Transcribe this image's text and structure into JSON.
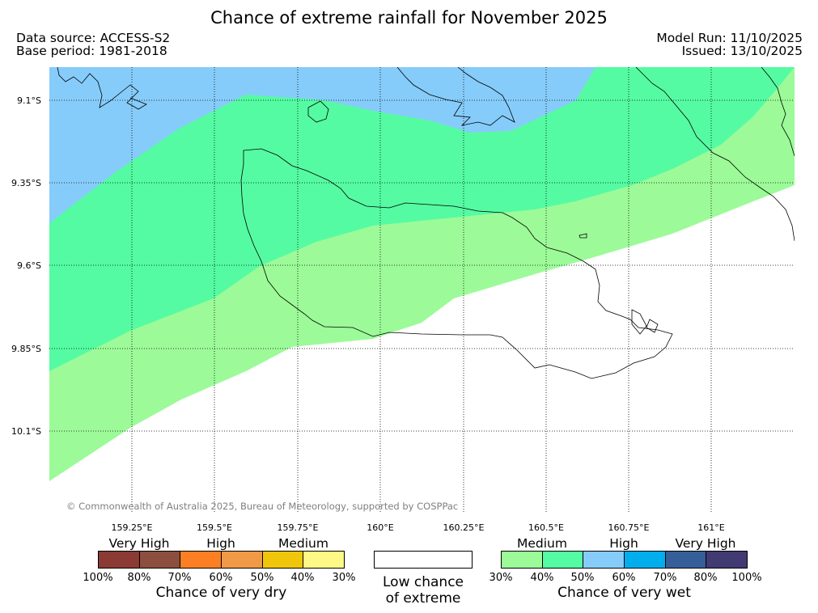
{
  "header": {
    "title": "Chance of extreme rainfall for November 2025",
    "data_source": "Data source: ACCESS-S2",
    "base_period": "Base period: 1981-2018",
    "model_run": "Model Run: 11/10/2025",
    "issued": "Issued: 13/10/2025"
  },
  "map": {
    "lat_labels": [
      "9.1°S",
      "9.35°S",
      "9.6°S",
      "9.85°S",
      "10.1°S"
    ],
    "lon_labels": [
      "159.25°E",
      "159.5°E",
      "159.75°E",
      "160°E",
      "160.25°E",
      "160.5°E",
      "160.75°E",
      "161°E"
    ],
    "copyright": "© Commonwealth of Australia 2025, Bureau of Meteorology, supported by COSPPac",
    "colors": {
      "wet_30_40": "#9cfb98",
      "wet_40_50": "#55fba2",
      "wet_50_60": "#86ccfa",
      "background": "#ffffff"
    }
  },
  "legend": {
    "dry": {
      "band_labels": [
        "Very High",
        "High",
        "Medium"
      ],
      "colors": [
        "#8b3a34",
        "#8c4e3f",
        "#fd7f23",
        "#f09a47",
        "#f0c60a",
        "#fef986"
      ],
      "ticks": [
        "100%",
        "80%",
        "70%",
        "60%",
        "50%",
        "40%",
        "30%"
      ],
      "caption": "Chance of very dry"
    },
    "low": {
      "caption_line1": "Low chance",
      "caption_line2": "of extreme"
    },
    "wet": {
      "band_labels": [
        "Medium",
        "High",
        "Very High"
      ],
      "colors": [
        "#9cfb98",
        "#55fba2",
        "#86ccfa",
        "#00aeee",
        "#365f9a",
        "#413a73"
      ],
      "ticks": [
        "30%",
        "40%",
        "50%",
        "60%",
        "70%",
        "80%",
        "100%"
      ],
      "caption": "Chance of very wet"
    }
  }
}
